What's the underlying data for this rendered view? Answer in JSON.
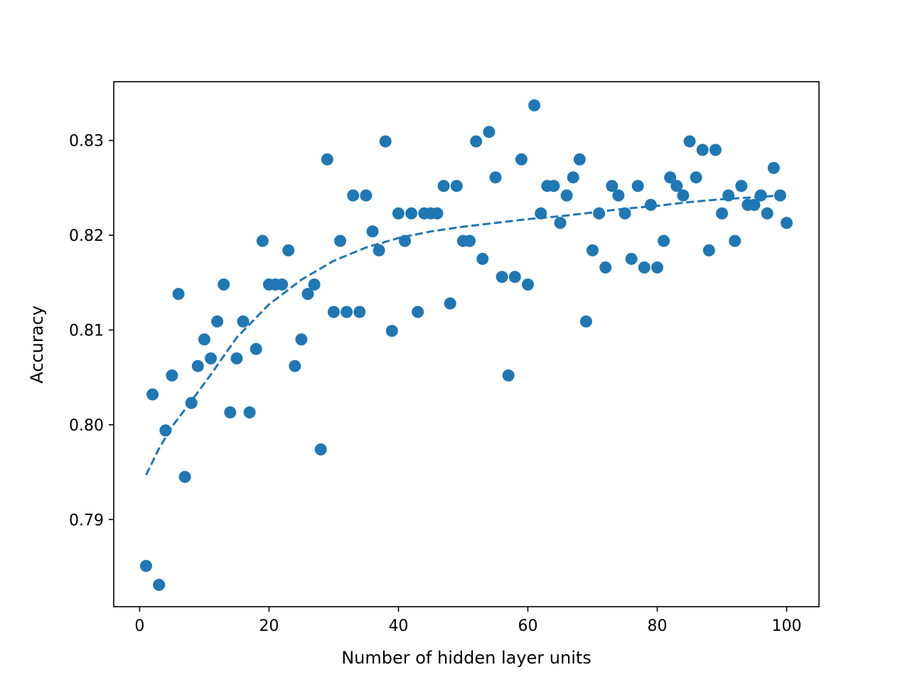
{
  "chart_data": {
    "type": "scatter",
    "title": "",
    "xlabel": "Number of hidden layer units",
    "ylabel": "Accuracy",
    "xlim": [
      -4,
      105
    ],
    "ylim": [
      0.7808,
      0.8362
    ],
    "x_ticks": [
      0,
      20,
      40,
      60,
      80,
      100
    ],
    "y_ticks": [
      0.79,
      0.8,
      0.81,
      0.82,
      0.83
    ],
    "x_tick_labels": [
      "0",
      "20",
      "40",
      "60",
      "80",
      "100"
    ],
    "y_tick_labels": [
      "0.79",
      "0.80",
      "0.81",
      "0.82",
      "0.83"
    ],
    "grid": false,
    "colors": {
      "series": "#1f77b4",
      "axes": "#000000"
    },
    "series": [
      {
        "kind": "scatter",
        "x": [
          1,
          2,
          3,
          4,
          5,
          6,
          7,
          8,
          9,
          10,
          11,
          12,
          13,
          14,
          15,
          16,
          17,
          18,
          19,
          20,
          21,
          22,
          23,
          24,
          25,
          26,
          27,
          28,
          29,
          30,
          31,
          32,
          33,
          34,
          35,
          36,
          37,
          38,
          39,
          40,
          41,
          42,
          43,
          44,
          45,
          46,
          47,
          48,
          49,
          50,
          51,
          52,
          53,
          54,
          55,
          56,
          57,
          58,
          59,
          60,
          61,
          62,
          63,
          64,
          65,
          66,
          67,
          68,
          69,
          70,
          71,
          72,
          73,
          74,
          75,
          76,
          77,
          78,
          79,
          80,
          81,
          82,
          83,
          84,
          85,
          86,
          87,
          88,
          89,
          90,
          91,
          92,
          93,
          94,
          95,
          96,
          97,
          98,
          99,
          100
        ],
        "y": [
          0.7851,
          0.8032,
          0.7831,
          0.7994,
          0.8052,
          0.8138,
          0.7945,
          0.8023,
          0.8062,
          0.809,
          0.807,
          0.8109,
          0.8148,
          0.8013,
          0.807,
          0.8109,
          0.8013,
          0.808,
          0.8194,
          0.8148,
          0.8148,
          0.8148,
          0.8184,
          0.8062,
          0.809,
          0.8138,
          0.8148,
          0.7974,
          0.828,
          0.8119,
          0.8194,
          0.8119,
          0.8242,
          0.8119,
          0.8242,
          0.8204,
          0.8184,
          0.8299,
          0.8099,
          0.8223,
          0.8194,
          0.8223,
          0.8119,
          0.8223,
          0.8223,
          0.8223,
          0.8252,
          0.8128,
          0.8252,
          0.8194,
          0.8194,
          0.8299,
          0.8175,
          0.8309,
          0.8261,
          0.8156,
          0.8052,
          0.8156,
          0.828,
          0.8148,
          0.8337,
          0.8223,
          0.8252,
          0.8252,
          0.8213,
          0.8242,
          0.8261,
          0.828,
          0.8109,
          0.8184,
          0.8223,
          0.8166,
          0.8252,
          0.8242,
          0.8223,
          0.8175,
          0.8252,
          0.8166,
          0.8232,
          0.8166,
          0.8194,
          0.8261,
          0.8252,
          0.8242,
          0.8299,
          0.8261,
          0.829,
          0.8184,
          0.829,
          0.8223,
          0.8242,
          0.8194,
          0.8252,
          0.8232,
          0.8232,
          0.8242,
          0.8223,
          0.8271,
          0.8242,
          0.8213
        ]
      },
      {
        "kind": "line",
        "style": "dashed",
        "x": [
          1,
          3,
          5,
          8,
          11,
          15,
          20,
          25,
          30,
          35,
          40,
          45,
          50,
          55,
          60,
          65,
          70,
          75,
          80,
          85,
          90,
          95,
          99
        ],
        "y": [
          0.7947,
          0.7975,
          0.7998,
          0.8025,
          0.8053,
          0.8092,
          0.8127,
          0.8153,
          0.8173,
          0.8187,
          0.8197,
          0.8204,
          0.8209,
          0.8213,
          0.8217,
          0.822,
          0.8224,
          0.8228,
          0.8231,
          0.8235,
          0.8238,
          0.824,
          0.8242
        ]
      }
    ]
  }
}
